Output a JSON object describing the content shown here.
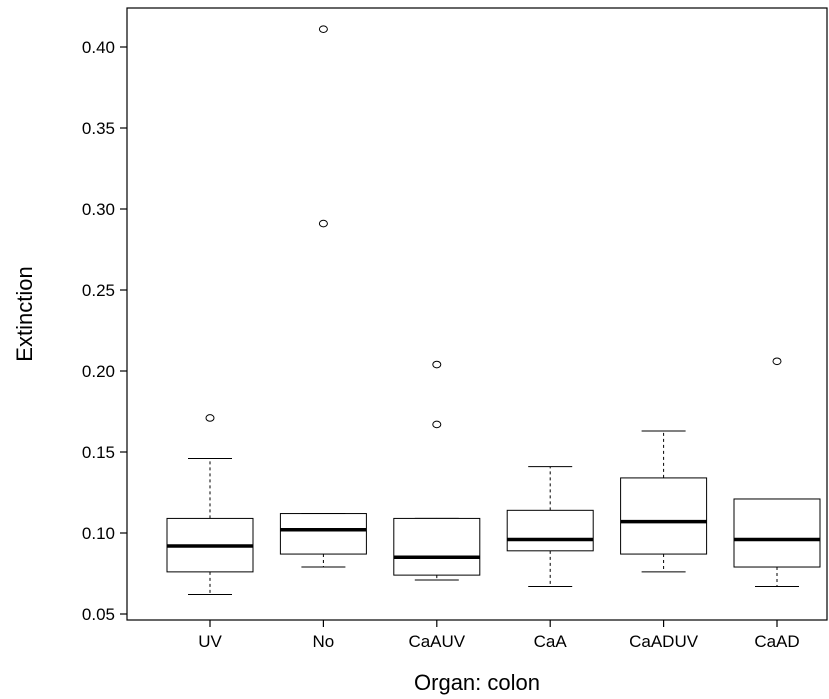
{
  "chart_data": {
    "type": "box",
    "xlabel": "Organ: colon",
    "ylabel": "Extinction",
    "ylim": [
      0.05,
      0.42
    ],
    "y_ticks": [
      0.05,
      0.1,
      0.15,
      0.2,
      0.25,
      0.3,
      0.35,
      0.4
    ],
    "y_tick_labels": [
      "0.05",
      "0.10",
      "0.15",
      "0.20",
      "0.25",
      "0.30",
      "0.35",
      "0.40"
    ],
    "categories": [
      "UV",
      "No",
      "CaAUV",
      "CaA",
      "CaADUV",
      "CaAD"
    ],
    "boxes": [
      {
        "category": "UV",
        "whisker_low": 0.062,
        "q1": 0.076,
        "median": 0.092,
        "q3": 0.109,
        "whisker_high": 0.146,
        "outliers": [
          0.171
        ]
      },
      {
        "category": "No",
        "whisker_low": 0.079,
        "q1": 0.087,
        "median": 0.102,
        "q3": 0.112,
        "whisker_high": 0.112,
        "outliers": [
          0.291,
          0.411
        ]
      },
      {
        "category": "CaAUV",
        "whisker_low": 0.071,
        "q1": 0.074,
        "median": 0.085,
        "q3": 0.109,
        "whisker_high": 0.109,
        "outliers": [
          0.167,
          0.204
        ]
      },
      {
        "category": "CaA",
        "whisker_low": 0.067,
        "q1": 0.089,
        "median": 0.096,
        "q3": 0.114,
        "whisker_high": 0.141,
        "outliers": []
      },
      {
        "category": "CaADUV",
        "whisker_low": 0.076,
        "q1": 0.087,
        "median": 0.107,
        "q3": 0.134,
        "whisker_high": 0.163,
        "outliers": []
      },
      {
        "category": "CaAD",
        "whisker_low": 0.067,
        "q1": 0.079,
        "median": 0.096,
        "q3": 0.121,
        "whisker_high": 0.121,
        "outliers": [
          0.206
        ]
      }
    ]
  }
}
